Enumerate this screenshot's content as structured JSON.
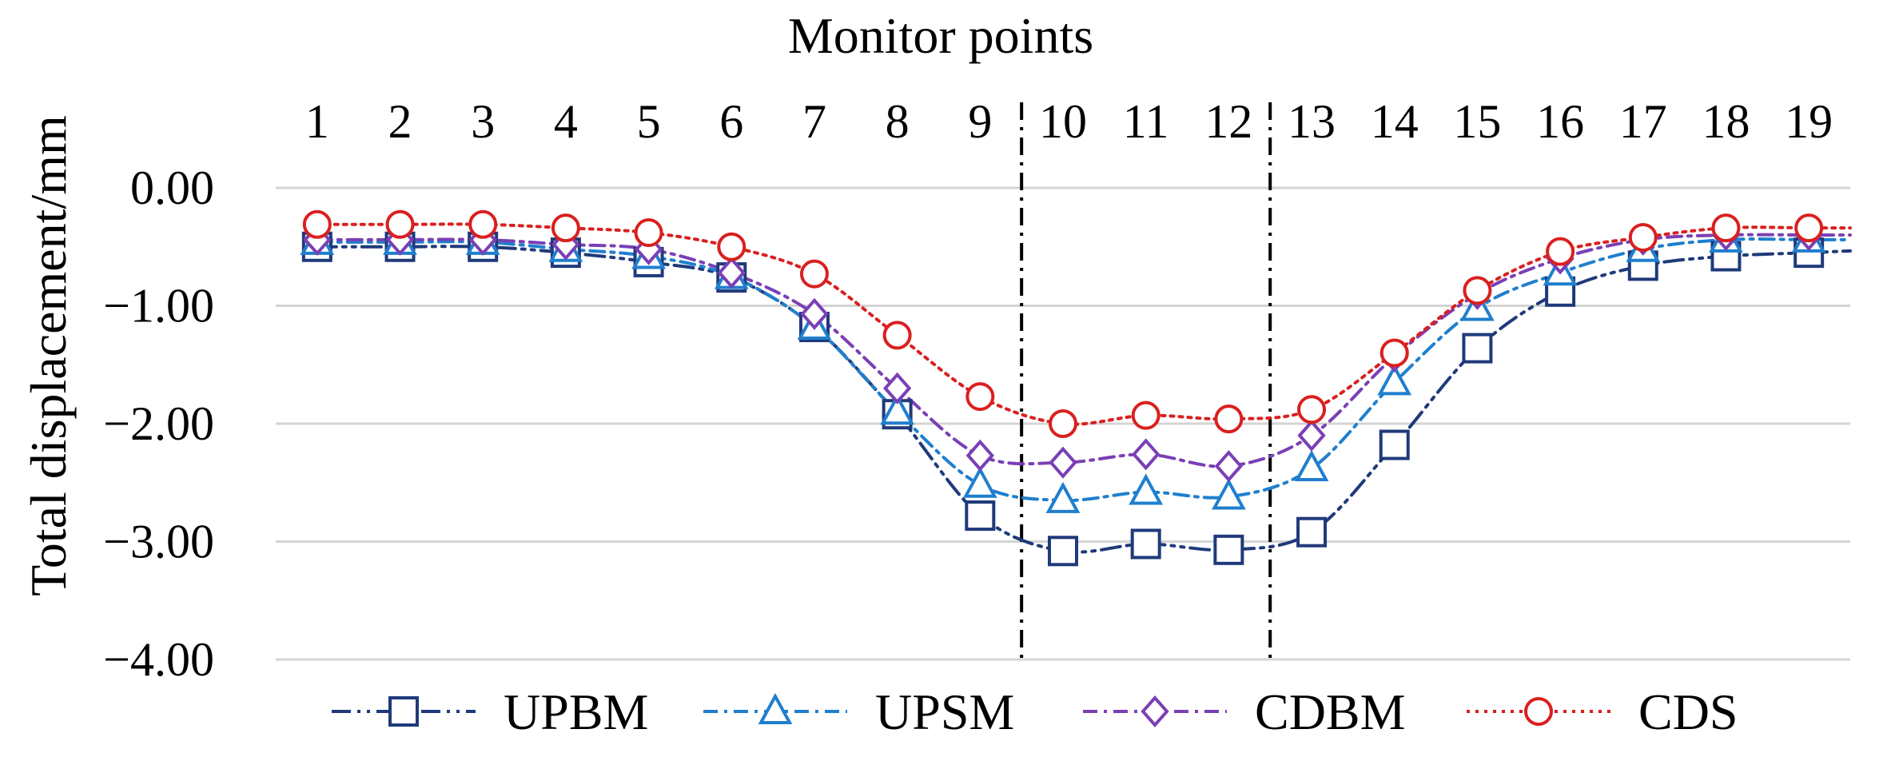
{
  "chart_data": {
    "type": "line",
    "title": "",
    "xlabel": "Monitor points",
    "ylabel": "Total displacement/mm",
    "x": [
      1,
      2,
      3,
      4,
      5,
      6,
      7,
      8,
      9,
      10,
      11,
      12,
      13,
      14,
      15,
      16,
      17,
      18,
      19
    ],
    "ylim": [
      -4.0,
      0.0
    ],
    "yticks": [
      "0.00",
      "−1.00",
      "−2.00",
      "−3.00",
      "−4.00"
    ],
    "ytick_values": [
      0,
      -1,
      -2,
      -3,
      -4
    ],
    "x_axis_position": "top",
    "grid": true,
    "legend_position": "bottom",
    "reference_lines_between": [
      [
        9,
        10
      ],
      [
        12,
        13
      ]
    ],
    "series": [
      {
        "name": "UPBM",
        "color": "#1f3a7a",
        "marker": "square",
        "dash": "dash-dot-dot",
        "values": [
          -0.5,
          -0.5,
          -0.5,
          -0.55,
          -0.63,
          -0.76,
          -1.18,
          -1.92,
          -2.78,
          -3.08,
          -3.02,
          -3.07,
          -2.92,
          -2.18,
          -1.36,
          -0.88,
          -0.66,
          -0.58,
          -0.55
        ]
      },
      {
        "name": "UPSM",
        "color": "#1f7fce",
        "marker": "triangle",
        "dash": "dash-dot",
        "values": [
          -0.46,
          -0.46,
          -0.46,
          -0.52,
          -0.58,
          -0.75,
          -1.18,
          -1.9,
          -2.52,
          -2.65,
          -2.58,
          -2.62,
          -2.38,
          -1.65,
          -1.02,
          -0.72,
          -0.52,
          -0.44,
          -0.44
        ]
      },
      {
        "name": "CDBM",
        "color": "#7a3fb5",
        "marker": "diamond",
        "dash": "dash-dot",
        "values": [
          -0.44,
          -0.44,
          -0.44,
          -0.48,
          -0.52,
          -0.72,
          -1.07,
          -1.7,
          -2.27,
          -2.33,
          -2.26,
          -2.36,
          -2.1,
          -1.43,
          -0.9,
          -0.6,
          -0.44,
          -0.4,
          -0.4
        ]
      },
      {
        "name": "CDS",
        "color": "#d9201f",
        "marker": "circle",
        "dash": "dotted",
        "values": [
          -0.31,
          -0.31,
          -0.31,
          -0.34,
          -0.38,
          -0.5,
          -0.73,
          -1.25,
          -1.77,
          -2.0,
          -1.93,
          -1.96,
          -1.88,
          -1.4,
          -0.87,
          -0.54,
          -0.42,
          -0.34,
          -0.34
        ]
      }
    ]
  }
}
